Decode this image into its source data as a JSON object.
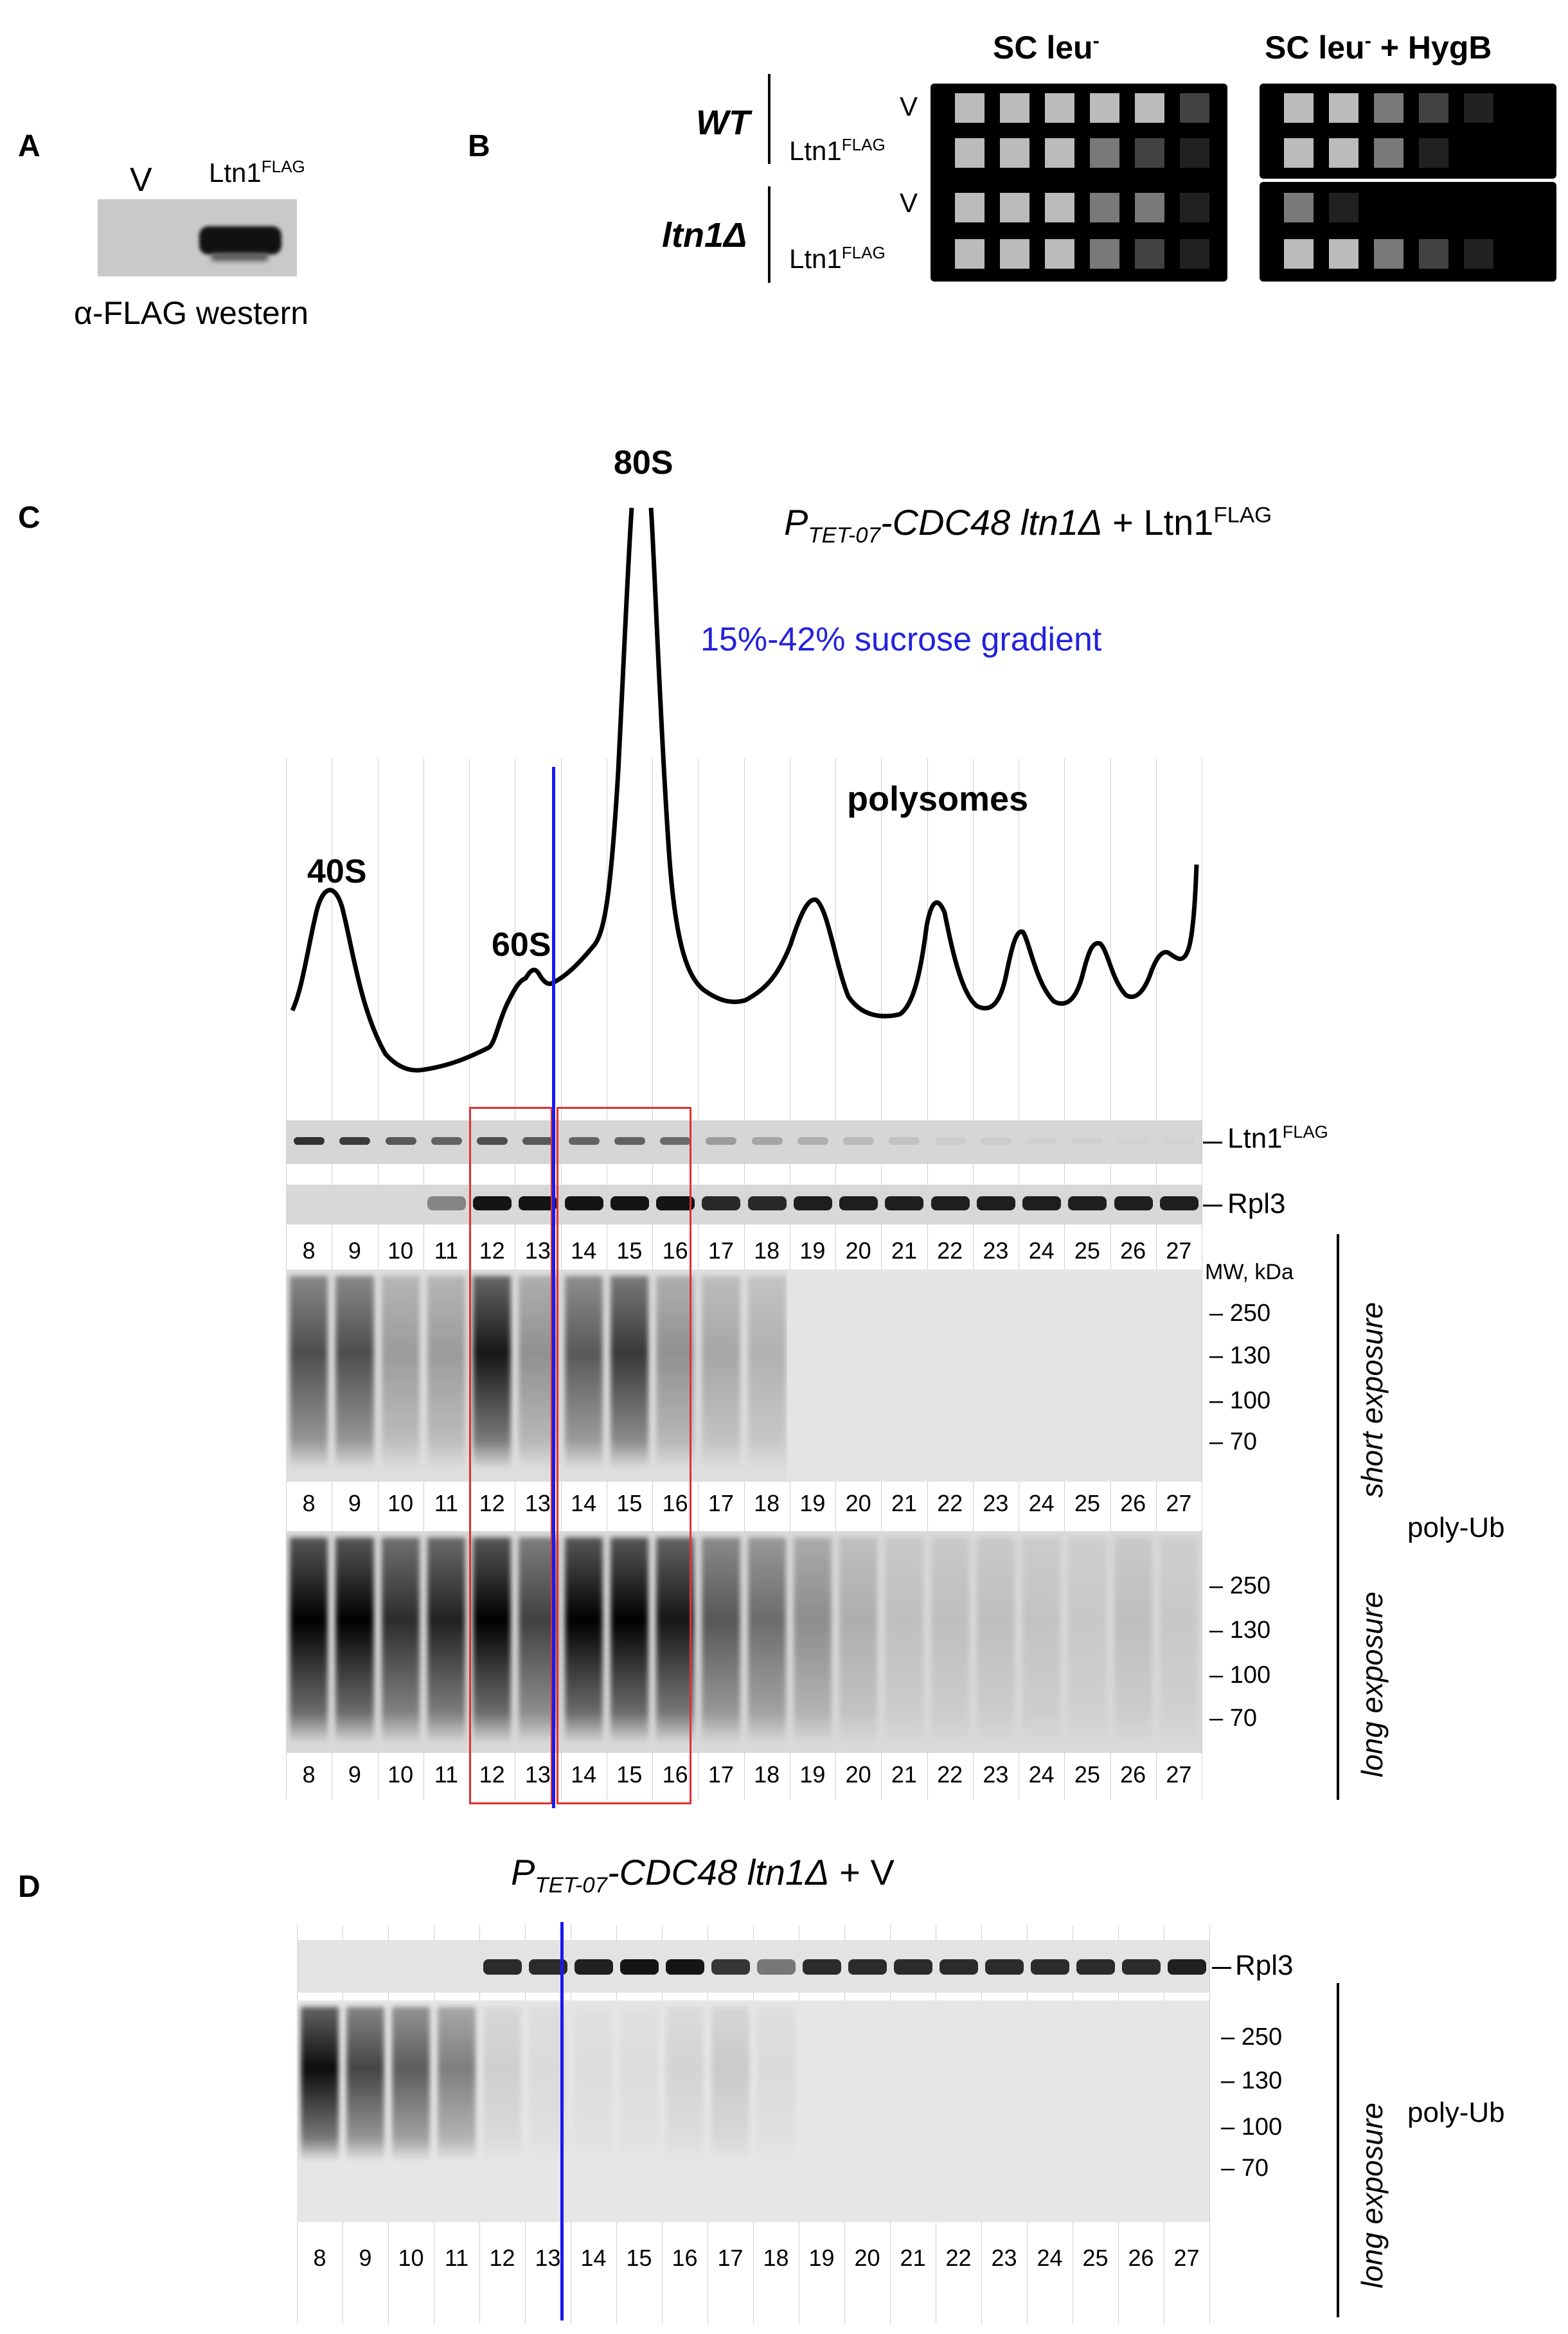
{
  "panelA": {
    "letter": "A",
    "lane_v": "V",
    "lane_ltn1": "Ltn1",
    "lane_ltn1_sup": "FLAG",
    "caption": "α-FLAG western"
  },
  "panelB": {
    "letter": "B",
    "col1": "SC leu",
    "col1_sup": "-",
    "col2": "SC leu",
    "col2_sup": "-",
    "col2_suffix": " + HygB",
    "strain_wt": "WT",
    "strain_ltn1": "ltn1Δ",
    "row_v": "V",
    "row_ltn1": "Ltn1",
    "row_ltn1_sup": "FLAG"
  },
  "panelC": {
    "letter": "C",
    "title_p": "P",
    "title_sub": "TET-07",
    "title_rest": "-CDC48 ltn1Δ",
    "title_plus": " + Ltn1",
    "title_sup": "FLAG",
    "gradient": "15%-42% sucrose gradient",
    "peak_80s": "80S",
    "peak_40s": "40S",
    "peak_60s": "60S",
    "polysomes": "polysomes",
    "band_ltn1": "Ltn1",
    "band_ltn1_sup": "FLAG",
    "band_rpl3": "Rpl3",
    "mw_title": "MW, kDa",
    "mw": [
      "250",
      "130",
      "100",
      "70"
    ],
    "short_exposure": "short exposure",
    "long_exposure": "long exposure",
    "poly_ub": "poly-Ub",
    "lanes": [
      "8",
      "9",
      "10",
      "11",
      "12",
      "13",
      "14",
      "15",
      "16",
      "17",
      "18",
      "19",
      "20",
      "21",
      "22",
      "23",
      "24",
      "25",
      "26",
      "27"
    ]
  },
  "panelD": {
    "letter": "D",
    "title_p": "P",
    "title_sub": "TET-07",
    "title_rest": "-CDC48 ltn1Δ",
    "title_plus": " + V",
    "band_rpl3": "Rpl3",
    "mw": [
      "250",
      "130",
      "100",
      "70"
    ],
    "long_exposure": "long exposure",
    "poly_ub": "poly-Ub",
    "lanes": [
      "8",
      "9",
      "10",
      "11",
      "12",
      "13",
      "14",
      "15",
      "16",
      "17",
      "18",
      "19",
      "20",
      "21",
      "22",
      "23",
      "24",
      "25",
      "26",
      "27"
    ]
  },
  "colors": {
    "gradient_text": "#2222dd",
    "divider_line": "#1a1aee",
    "highlight_box": "#e03030"
  }
}
